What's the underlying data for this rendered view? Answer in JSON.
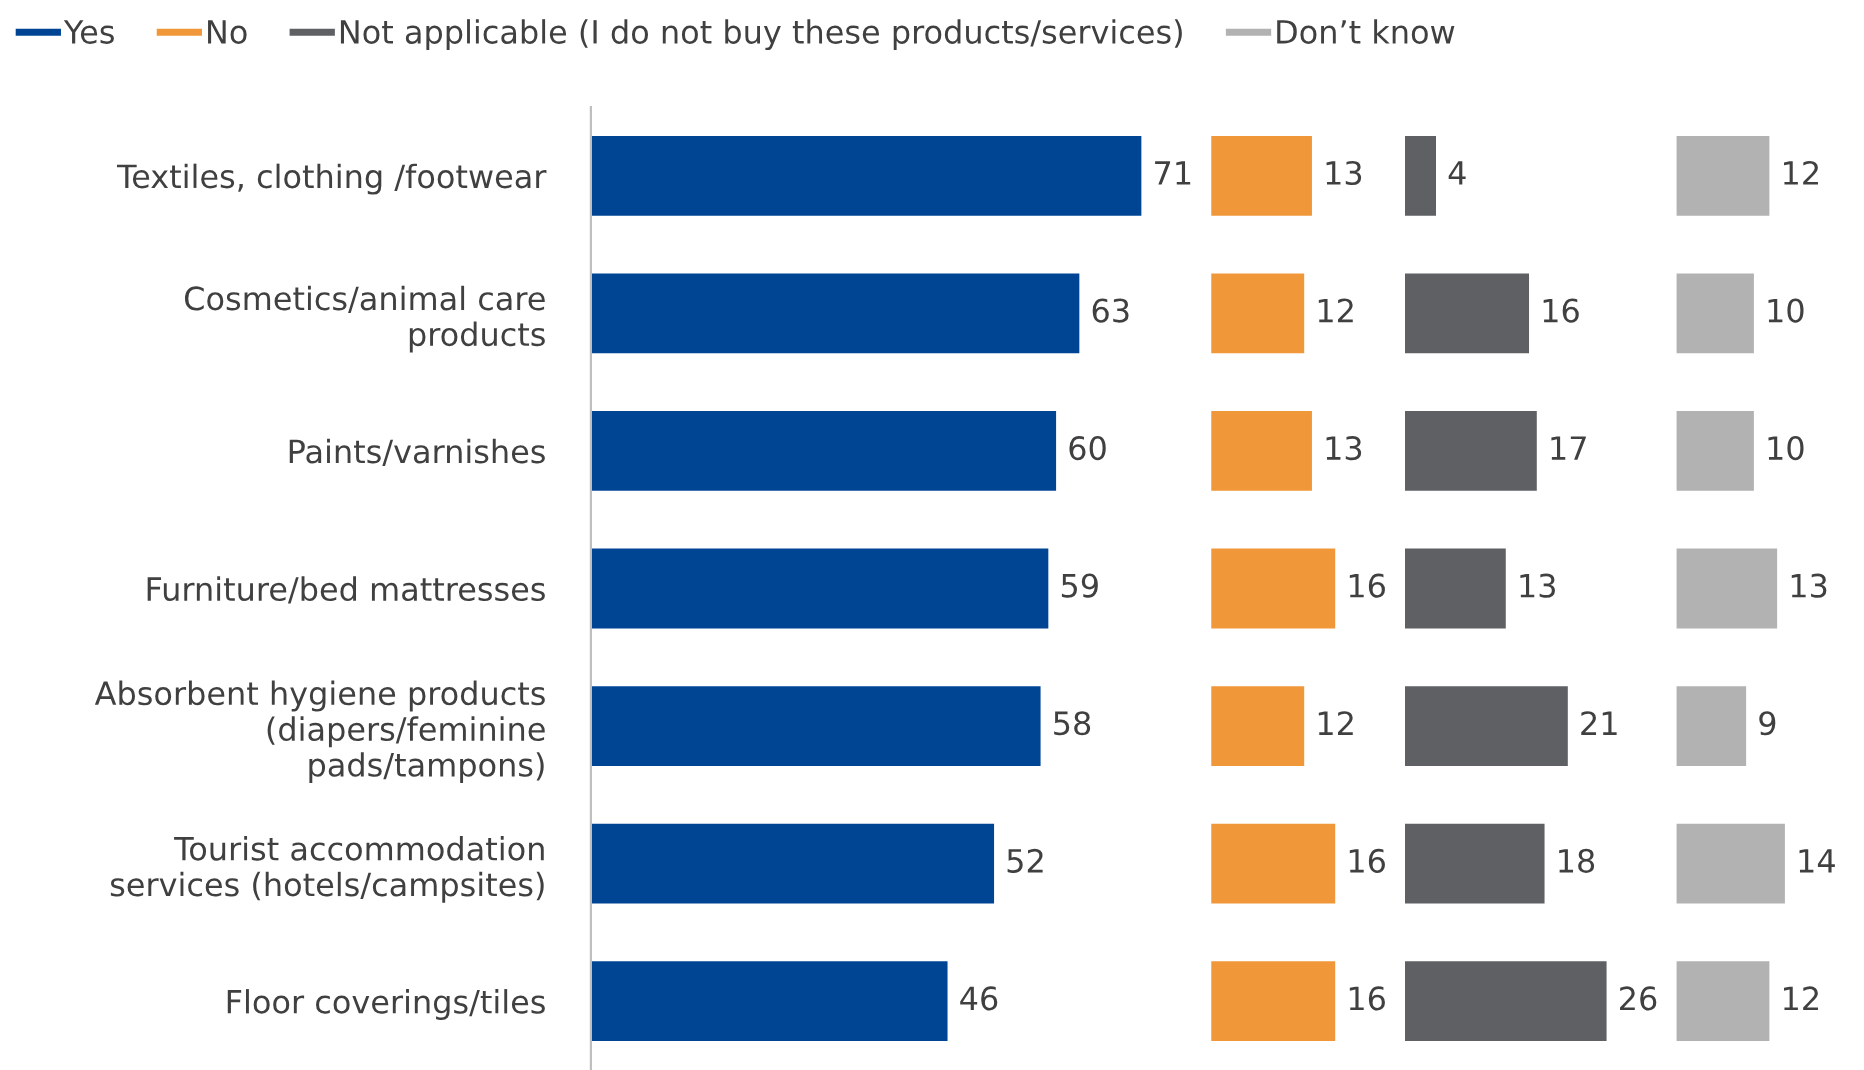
{
  "chart_data": [
    {
      "type": "bar",
      "orientation": "horizontal",
      "data_labels": true,
      "legend": "top",
      "grid": false,
      "categories": [
        "Textiles, clothing /footwear",
        "Cosmetics/animal care\nproducts",
        "Paints/varnishes",
        "Furniture/bed mattresses",
        "Absorbent hygiene products\n(diapers/feminine\npads/tampons)",
        "Tourist accommodation\nservices (hotels/campsites)",
        "Floor coverings/tiles"
      ],
      "series": [
        {
          "name": "Yes",
          "color": "#004494",
          "values": [
            71,
            63,
            60,
            59,
            58,
            52,
            46
          ]
        }
      ]
    },
    {
      "type": "bar",
      "orientation": "horizontal",
      "data_labels": true,
      "legend": "top",
      "grid": false,
      "tick_labels": false,
      "categories": [
        null,
        null,
        null,
        null,
        null,
        null,
        null
      ],
      "series": [
        {
          "name": "No",
          "color": "#f0973a",
          "values": [
            13,
            12,
            13,
            16,
            12,
            16,
            16
          ]
        }
      ]
    },
    {
      "type": "bar",
      "orientation": "horizontal",
      "data_labels": true,
      "legend": "top",
      "grid": false,
      "tick_labels": false,
      "categories": [
        null,
        null,
        null,
        null,
        null,
        null,
        null
      ],
      "series": [
        {
          "name": "Not applicable (I do not buy these products/services)",
          "color": "#5f6064",
          "values": [
            4,
            16,
            17,
            13,
            21,
            18,
            26
          ]
        }
      ]
    },
    {
      "type": "bar",
      "orientation": "horizontal",
      "data_labels": true,
      "legend": "top",
      "grid": false,
      "tick_labels": false,
      "categories": [
        null,
        null,
        null,
        null,
        null,
        null,
        null
      ],
      "series": [
        {
          "name": "Don’t know",
          "color": "#b2b2b2",
          "values": [
            12,
            10,
            10,
            13,
            9,
            14,
            12
          ]
        }
      ]
    }
  ]
}
